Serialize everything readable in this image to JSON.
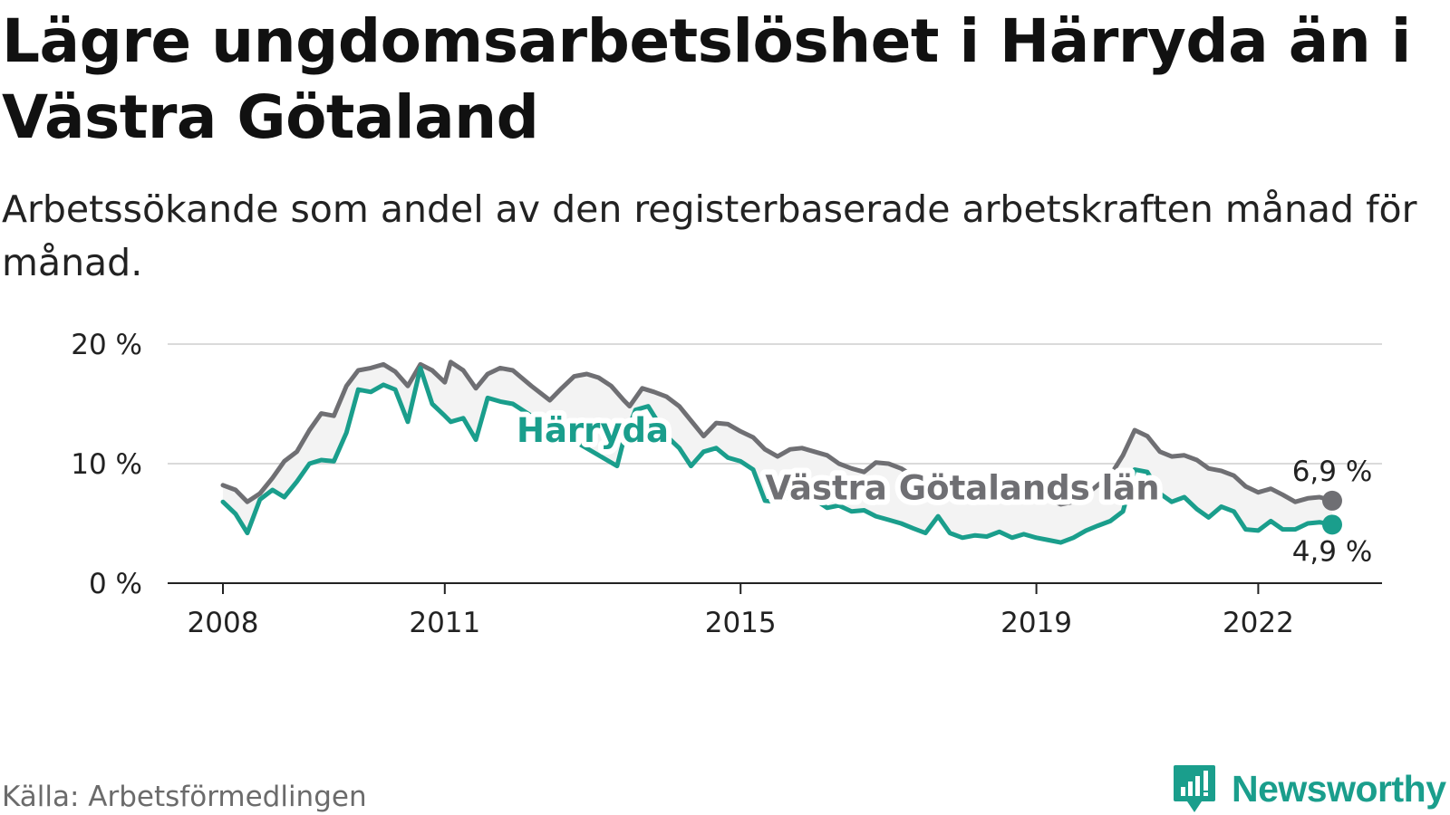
{
  "title": "Lägre ungdomsarbetslöshet i Härryda än i Västra Götaland",
  "subtitle": "Arbetssökande som andel av den registerbaserade arbetskraften månad för månad.",
  "source": "Källa: Arbetsförmedlingen",
  "brand": "Newsworthy",
  "colors": {
    "harryda": "#1a9e8c",
    "vastra": "#6f6f73",
    "band": "#f3f3f3",
    "grid": "#dadada",
    "axis": "#222222"
  },
  "chart_data": {
    "type": "line",
    "ylim": [
      0,
      20
    ],
    "yticks": [
      {
        "v": 0,
        "label": "0 %"
      },
      {
        "v": 10,
        "label": "10 %"
      },
      {
        "v": 20,
        "label": "20 %"
      }
    ],
    "xticks": [
      {
        "v": 2008.0,
        "label": "2008"
      },
      {
        "v": 2011.0,
        "label": "2011"
      },
      {
        "v": 2015.0,
        "label": "2015"
      },
      {
        "v": 2019.0,
        "label": "2019"
      },
      {
        "v": 2022.0,
        "label": "2022"
      }
    ],
    "grid": "horizontal",
    "series": [
      {
        "key": "vastra",
        "name": "Västra Götalands län",
        "end_label": "6,9 %",
        "points": [
          [
            2008.0,
            8.2
          ],
          [
            2008.17,
            7.8
          ],
          [
            2008.33,
            6.8
          ],
          [
            2008.5,
            7.5
          ],
          [
            2008.67,
            8.8
          ],
          [
            2008.83,
            10.2
          ],
          [
            2009.0,
            11.0
          ],
          [
            2009.17,
            12.8
          ],
          [
            2009.33,
            14.2
          ],
          [
            2009.5,
            14.0
          ],
          [
            2009.67,
            16.5
          ],
          [
            2009.83,
            17.8
          ],
          [
            2010.0,
            18.0
          ],
          [
            2010.17,
            18.3
          ],
          [
            2010.33,
            17.7
          ],
          [
            2010.5,
            16.5
          ],
          [
            2010.67,
            18.3
          ],
          [
            2010.83,
            17.8
          ],
          [
            2011.0,
            16.8
          ],
          [
            2011.08,
            18.5
          ],
          [
            2011.25,
            17.8
          ],
          [
            2011.42,
            16.3
          ],
          [
            2011.58,
            17.5
          ],
          [
            2011.75,
            18.0
          ],
          [
            2011.92,
            17.8
          ],
          [
            2012.17,
            16.5
          ],
          [
            2012.42,
            15.3
          ],
          [
            2012.58,
            16.3
          ],
          [
            2012.75,
            17.3
          ],
          [
            2012.92,
            17.5
          ],
          [
            2013.08,
            17.2
          ],
          [
            2013.25,
            16.5
          ],
          [
            2013.42,
            15.3
          ],
          [
            2013.5,
            14.8
          ],
          [
            2013.67,
            16.3
          ],
          [
            2013.83,
            16.0
          ],
          [
            2014.0,
            15.6
          ],
          [
            2014.17,
            14.8
          ],
          [
            2014.33,
            13.6
          ],
          [
            2014.5,
            12.3
          ],
          [
            2014.67,
            13.4
          ],
          [
            2014.83,
            13.3
          ],
          [
            2015.0,
            12.7
          ],
          [
            2015.17,
            12.2
          ],
          [
            2015.33,
            11.2
          ],
          [
            2015.5,
            10.6
          ],
          [
            2015.67,
            11.2
          ],
          [
            2015.83,
            11.3
          ],
          [
            2016.0,
            11.0
          ],
          [
            2016.17,
            10.7
          ],
          [
            2016.33,
            10.0
          ],
          [
            2016.5,
            9.6
          ],
          [
            2016.67,
            9.3
          ],
          [
            2016.83,
            10.1
          ],
          [
            2017.0,
            10.0
          ],
          [
            2017.17,
            9.6
          ],
          [
            2017.33,
            9.0
          ],
          [
            2017.5,
            8.8
          ],
          [
            2017.67,
            8.6
          ],
          [
            2017.83,
            8.3
          ],
          [
            2018.0,
            8.1
          ],
          [
            2018.17,
            7.8
          ],
          [
            2018.33,
            7.5
          ],
          [
            2018.5,
            6.9
          ],
          [
            2018.67,
            7.4
          ],
          [
            2018.83,
            7.7
          ],
          [
            2019.0,
            7.5
          ],
          [
            2019.17,
            7.0
          ],
          [
            2019.33,
            6.6
          ],
          [
            2019.5,
            6.8
          ],
          [
            2019.67,
            7.4
          ],
          [
            2019.83,
            8.2
          ],
          [
            2020.0,
            9.0
          ],
          [
            2020.17,
            10.7
          ],
          [
            2020.33,
            12.8
          ],
          [
            2020.5,
            12.3
          ],
          [
            2020.67,
            11.0
          ],
          [
            2020.83,
            10.6
          ],
          [
            2021.0,
            10.7
          ],
          [
            2021.17,
            10.3
          ],
          [
            2021.33,
            9.6
          ],
          [
            2021.5,
            9.4
          ],
          [
            2021.67,
            9.0
          ],
          [
            2021.83,
            8.1
          ],
          [
            2022.0,
            7.6
          ],
          [
            2022.17,
            7.9
          ],
          [
            2022.33,
            7.4
          ],
          [
            2022.5,
            6.8
          ],
          [
            2022.67,
            7.1
          ],
          [
            2022.83,
            7.2
          ],
          [
            2023.0,
            6.9
          ]
        ]
      },
      {
        "key": "harryda",
        "name": "Härryda",
        "end_label": "4,9 %",
        "points": [
          [
            2008.0,
            6.8
          ],
          [
            2008.17,
            5.8
          ],
          [
            2008.33,
            4.2
          ],
          [
            2008.5,
            7.0
          ],
          [
            2008.67,
            7.8
          ],
          [
            2008.83,
            7.2
          ],
          [
            2009.0,
            8.5
          ],
          [
            2009.17,
            10.0
          ],
          [
            2009.33,
            10.3
          ],
          [
            2009.5,
            10.2
          ],
          [
            2009.67,
            12.6
          ],
          [
            2009.83,
            16.2
          ],
          [
            2010.0,
            16.0
          ],
          [
            2010.17,
            16.6
          ],
          [
            2010.33,
            16.2
          ],
          [
            2010.5,
            13.5
          ],
          [
            2010.67,
            18.0
          ],
          [
            2010.83,
            15.0
          ],
          [
            2011.0,
            14.0
          ],
          [
            2011.08,
            13.5
          ],
          [
            2011.25,
            13.8
          ],
          [
            2011.42,
            12.0
          ],
          [
            2011.58,
            15.5
          ],
          [
            2011.75,
            15.2
          ],
          [
            2011.92,
            15.0
          ],
          [
            2012.17,
            14.0
          ],
          [
            2013.33,
            9.8
          ],
          [
            2013.42,
            12.0
          ],
          [
            2013.58,
            14.5
          ],
          [
            2013.75,
            14.8
          ],
          [
            2014.0,
            12.3
          ],
          [
            2014.17,
            11.3
          ],
          [
            2014.33,
            9.8
          ],
          [
            2014.5,
            11.0
          ],
          [
            2014.67,
            11.3
          ],
          [
            2014.83,
            10.5
          ],
          [
            2015.0,
            10.2
          ],
          [
            2015.17,
            9.5
          ],
          [
            2015.33,
            6.9
          ],
          [
            2015.5,
            6.8
          ],
          [
            2015.67,
            7.2
          ],
          [
            2016.0,
            7.0
          ],
          [
            2016.17,
            6.3
          ],
          [
            2016.33,
            6.5
          ],
          [
            2016.5,
            6.0
          ],
          [
            2016.67,
            6.1
          ],
          [
            2016.83,
            5.6
          ],
          [
            2017.0,
            5.3
          ],
          [
            2017.17,
            5.0
          ],
          [
            2017.33,
            4.6
          ],
          [
            2017.5,
            4.2
          ],
          [
            2017.67,
            5.6
          ],
          [
            2017.83,
            4.2
          ],
          [
            2018.0,
            3.8
          ],
          [
            2018.17,
            4.0
          ],
          [
            2018.33,
            3.9
          ],
          [
            2018.5,
            4.3
          ],
          [
            2018.67,
            3.8
          ],
          [
            2018.83,
            4.1
          ],
          [
            2019.0,
            3.8
          ],
          [
            2019.17,
            3.6
          ],
          [
            2019.33,
            3.4
          ],
          [
            2019.5,
            3.8
          ],
          [
            2019.67,
            4.4
          ],
          [
            2019.83,
            4.8
          ],
          [
            2020.0,
            5.2
          ],
          [
            2020.17,
            6.0
          ],
          [
            2020.33,
            9.5
          ],
          [
            2020.5,
            9.3
          ],
          [
            2020.67,
            7.5
          ],
          [
            2020.83,
            6.8
          ],
          [
            2021.0,
            7.2
          ],
          [
            2021.17,
            6.2
          ],
          [
            2021.33,
            5.5
          ],
          [
            2021.5,
            6.4
          ],
          [
            2021.67,
            6.0
          ],
          [
            2021.83,
            4.5
          ],
          [
            2022.0,
            4.4
          ],
          [
            2022.17,
            5.2
          ],
          [
            2022.33,
            4.5
          ],
          [
            2022.5,
            4.5
          ],
          [
            2022.67,
            5.0
          ],
          [
            2022.83,
            5.1
          ],
          [
            2023.0,
            4.9
          ]
        ]
      }
    ]
  }
}
